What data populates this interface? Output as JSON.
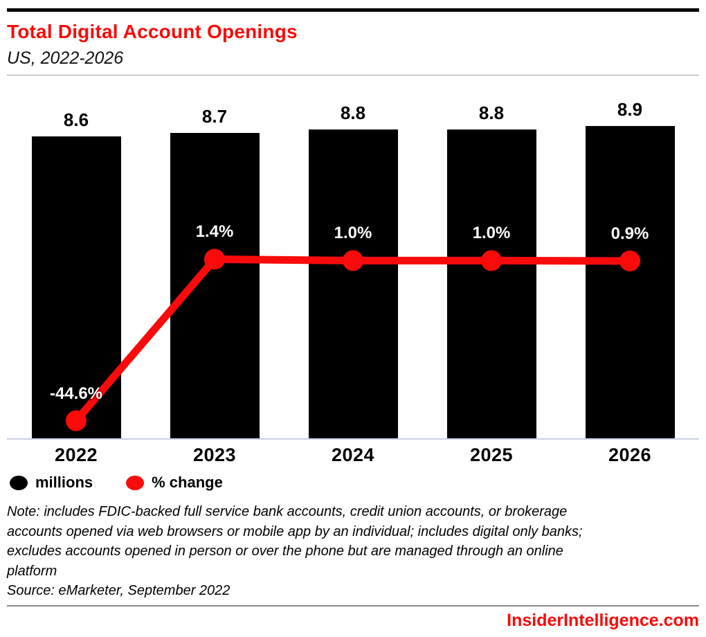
{
  "page": {
    "title": "Total Digital Account Openings",
    "subtitle": "US, 2022-2026",
    "note_lines": [
      "Note: includes FDIC-backed full service bank accounts, credit union accounts, or brokerage",
      "accounts opened via web browsers or mobile app by an individual; includes digital only banks;",
      "excludes accounts opened in person or over the phone but are managed through an online",
      "platform"
    ],
    "source": "Source: eMarketer, September 2022",
    "footer_brand": "InsiderIntelligence.com"
  },
  "colors": {
    "accent_red": "#fa0a0a",
    "bar_black": "#000000",
    "baseline": "#c8cfe3",
    "title_red": "#fa0a0a",
    "pct_label_white": "#ffffff"
  },
  "legend": [
    {
      "label": "millions",
      "color": "#000000"
    },
    {
      "label": "% change",
      "color": "#fa0a0a"
    }
  ],
  "chart_data": {
    "type": "bar",
    "subtype": "bar+line combo",
    "title": "Total Digital Account Openings",
    "subtitle": "US, 2022-2026",
    "categories": [
      "2022",
      "2023",
      "2024",
      "2025",
      "2026"
    ],
    "series": [
      {
        "name": "millions",
        "type": "bar",
        "values": [
          8.6,
          8.7,
          8.8,
          8.8,
          8.9
        ],
        "labels": [
          "8.6",
          "8.7",
          "8.8",
          "8.8",
          "8.9"
        ],
        "color": "#000000",
        "ylim": [
          0,
          10
        ]
      },
      {
        "name": "% change",
        "type": "line",
        "values": [
          -44.6,
          1.4,
          1.0,
          1.0,
          0.9
        ],
        "labels": [
          "-44.6%",
          "1.4%",
          "1.0%",
          "1.0%",
          "0.9%"
        ],
        "color": "#fa0a0a",
        "ylim": [
          -50,
          50
        ]
      }
    ],
    "xlabel": "",
    "ylabel": "",
    "grid": false,
    "axis_ticks": "none (value labels printed on chart)",
    "legend_position": "bottom-left",
    "value_label_style": "black bold above bars; white bold above line points"
  }
}
